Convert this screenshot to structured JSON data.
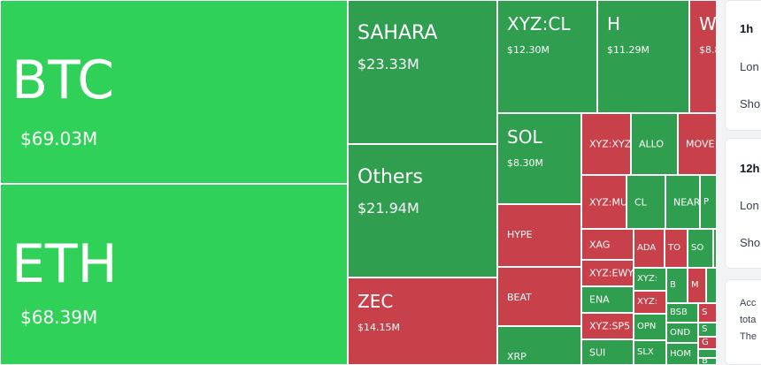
{
  "colors": {
    "up_bright": "#30d158",
    "up": "#2f9e4f",
    "down": "#c7404a"
  },
  "tiles": [
    {
      "id": "btc",
      "symbol": "BTC",
      "amount": "$69.03M",
      "dir": "up_bright"
    },
    {
      "id": "eth",
      "symbol": "ETH",
      "amount": "$68.39M",
      "dir": "up_bright"
    },
    {
      "id": "sahara",
      "symbol": "SAHARA",
      "amount": "$23.33M",
      "dir": "up"
    },
    {
      "id": "others",
      "symbol": "Others",
      "amount": "$21.94M",
      "dir": "up"
    },
    {
      "id": "zec",
      "symbol": "ZEC",
      "amount": "$14.15M",
      "dir": "down"
    },
    {
      "id": "xyzcl",
      "symbol": "XYZ:CL",
      "amount": "$12.30M",
      "dir": "up"
    },
    {
      "id": "h",
      "symbol": "H",
      "amount": "$11.29M",
      "dir": "up"
    },
    {
      "id": "w",
      "symbol": "W",
      "amount": "$8.8",
      "dir": "down"
    },
    {
      "id": "sol",
      "symbol": "SOL",
      "amount": "$8.30M",
      "dir": "up"
    },
    {
      "id": "hype",
      "symbol": "HYPE",
      "dir": "down"
    },
    {
      "id": "beat",
      "symbol": "BEAT",
      "dir": "down"
    },
    {
      "id": "xrp",
      "symbol": "XRP",
      "dir": "up"
    },
    {
      "id": "xyzxy",
      "symbol": "XYZ:XYZ",
      "dir": "down"
    },
    {
      "id": "allo",
      "symbol": "ALLO",
      "dir": "up"
    },
    {
      "id": "move",
      "symbol": "MOVE",
      "dir": "down"
    },
    {
      "id": "xyzmu",
      "symbol": "XYZ:MU",
      "dir": "down"
    },
    {
      "id": "cl",
      "symbol": "CL",
      "dir": "up"
    },
    {
      "id": "near",
      "symbol": "NEAR",
      "dir": "up"
    },
    {
      "id": "p",
      "symbol": "P",
      "dir": "up"
    },
    {
      "id": "xag",
      "symbol": "XAG",
      "dir": "down"
    },
    {
      "id": "ada",
      "symbol": "ADA",
      "dir": "down"
    },
    {
      "id": "to",
      "symbol": "TO",
      "dir": "down"
    },
    {
      "id": "so",
      "symbol": "SO",
      "dir": "up"
    },
    {
      "id": "g1",
      "symbol": "",
      "dir": "up"
    },
    {
      "id": "xyzewy",
      "symbol": "XYZ:EWY",
      "dir": "down"
    },
    {
      "id": "xyz2",
      "symbol": "XYZ:",
      "dir": "up"
    },
    {
      "id": "b",
      "symbol": "B",
      "dir": "up"
    },
    {
      "id": "m",
      "symbol": "M",
      "dir": "down"
    },
    {
      "id": "g2",
      "symbol": "",
      "dir": "up"
    },
    {
      "id": "ena",
      "symbol": "ENA",
      "dir": "up"
    },
    {
      "id": "xyz3",
      "symbol": "XYZ:",
      "dir": "down"
    },
    {
      "id": "xyzsp",
      "symbol": "XYZ:SP5",
      "dir": "down"
    },
    {
      "id": "opn",
      "symbol": "OPN",
      "dir": "up"
    },
    {
      "id": "bsb",
      "symbol": "BSB",
      "dir": "up"
    },
    {
      "id": "s1",
      "symbol": "S",
      "dir": "down"
    },
    {
      "id": "s2",
      "symbol": "S",
      "dir": "up"
    },
    {
      "id": "ond",
      "symbol": "OND",
      "dir": "up"
    },
    {
      "id": "g3",
      "symbol": "G",
      "dir": "down"
    },
    {
      "id": "sui",
      "symbol": "SUI",
      "dir": "up"
    },
    {
      "id": "slx",
      "symbol": "SLX",
      "dir": "up"
    },
    {
      "id": "hom",
      "symbol": "HOM",
      "dir": "up"
    },
    {
      "id": "g4",
      "symbol": "",
      "dir": "up"
    },
    {
      "id": "b2",
      "symbol": "B",
      "dir": "up"
    }
  ],
  "panel": {
    "card_1h": {
      "title": "1h",
      "long_label": "Lon",
      "short_label": "Sho"
    },
    "card_12h": {
      "title": "12h",
      "long_label": "Lon",
      "short_label": "Sho"
    },
    "info": {
      "line1": "Acc",
      "line2": "tota",
      "line3": "The"
    }
  }
}
